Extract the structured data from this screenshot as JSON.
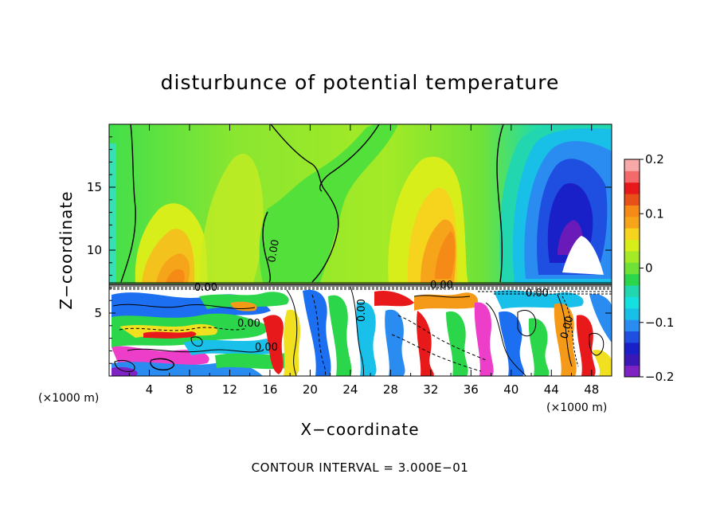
{
  "chart_data": {
    "type": "heatmap",
    "title": "disturbunce of potential temperature",
    "xlabel": "X−coordinate",
    "ylabel": "Z−coordinate",
    "x_unit_label": "(×1000 m)",
    "z_unit_label": "(×1000 m)",
    "xlim": [
      0,
      50
    ],
    "ylim": [
      0,
      20
    ],
    "x_ticks": [
      4,
      8,
      12,
      16,
      20,
      24,
      28,
      32,
      36,
      40,
      44,
      48
    ],
    "y_ticks": [
      5,
      10,
      15
    ],
    "colorbar": {
      "range": [
        -0.2,
        0.2
      ],
      "ticks": [
        0.2,
        0.1,
        0,
        -0.1,
        -0.2
      ],
      "tick_labels": [
        "0.2",
        "0.1",
        "0",
        "−0.1",
        "−0.2"
      ]
    },
    "contour_labels": [
      "0.00",
      "0.00",
      "0.00",
      "0.00",
      "0.00",
      "0.00",
      "0.00",
      "0.00"
    ],
    "note": "CONTOUR INTERVAL = 3.000E−01"
  }
}
